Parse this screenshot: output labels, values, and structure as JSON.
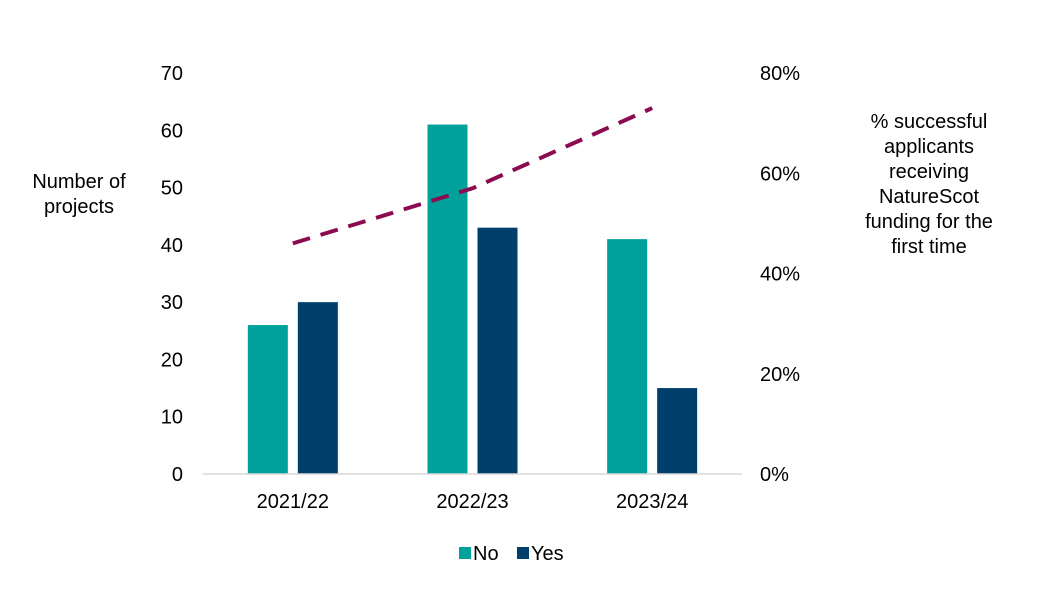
{
  "chart_data": {
    "type": "bar",
    "categories": [
      "2021/22",
      "2022/23",
      "2023/24"
    ],
    "series": [
      {
        "name": "No",
        "color": "#00A19A",
        "values": [
          26,
          61,
          41
        ]
      },
      {
        "name": "Yes",
        "color": "#003F6B",
        "values": [
          30,
          43,
          15
        ]
      }
    ],
    "line_series": {
      "color": "#8B0A50",
      "style": "dashed",
      "axis": "secondary",
      "values": [
        46,
        57,
        73
      ]
    },
    "ylabel": [
      "Number of",
      "projects"
    ],
    "y2label": [
      "% successful",
      "applicants",
      "receiving",
      "NatureScot",
      "funding  for the",
      "first time"
    ],
    "ylim": [
      0,
      70
    ],
    "yticks": [
      0,
      10,
      20,
      30,
      40,
      50,
      60,
      70
    ],
    "y2lim": [
      0,
      80
    ],
    "y2ticks": [
      0,
      20,
      40,
      60,
      80
    ],
    "y2tick_labels": [
      "0%",
      "20%",
      "40%",
      "60%",
      "80%"
    ],
    "grid": false,
    "legend_position": "bottom"
  }
}
